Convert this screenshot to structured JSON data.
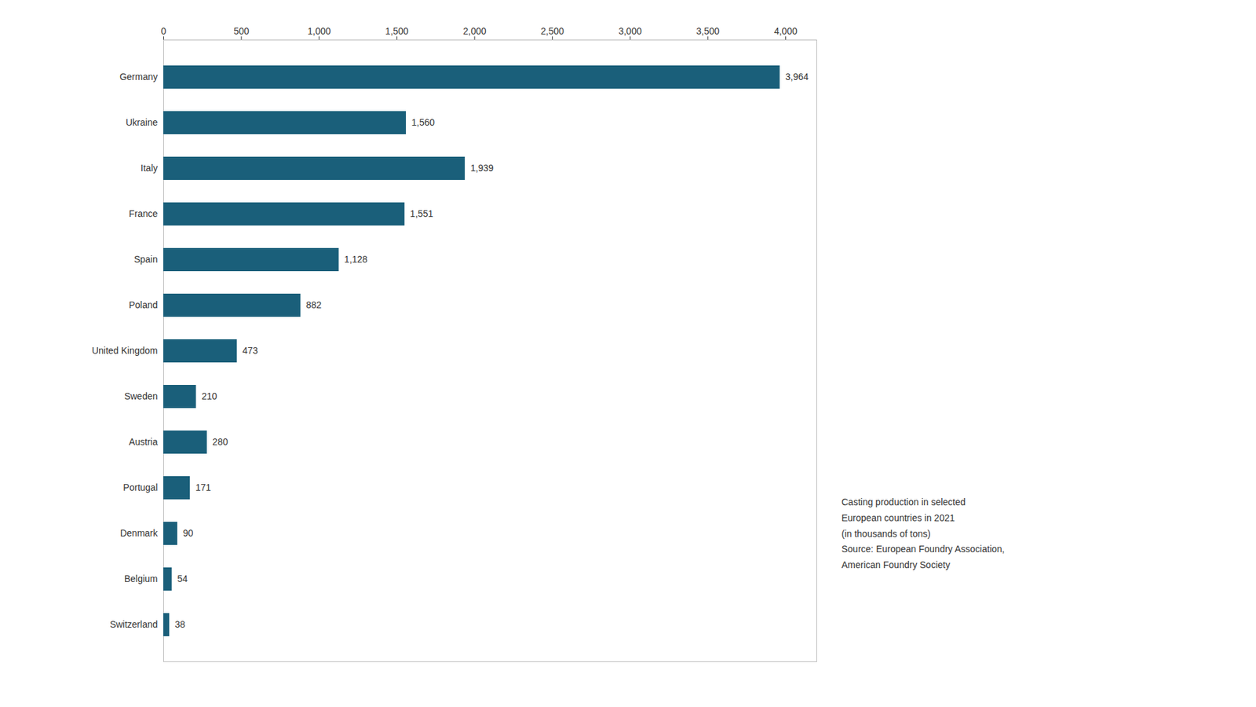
{
  "chart_data": {
    "type": "bar",
    "orientation": "horizontal",
    "categories": [
      "Switzerland",
      "Belgium",
      "Denmark",
      "Portugal",
      "Austria",
      "Sweden",
      "United Kingdom",
      "Poland",
      "Spain",
      "France",
      "Italy",
      "Ukraine",
      "Germany"
    ],
    "values": [
      38,
      54,
      90,
      171,
      280,
      210,
      473,
      882,
      1128,
      1551,
      1939,
      1560,
      3964
    ],
    "value_labels": [
      "38",
      "54",
      "90",
      "171",
      "280",
      "210",
      "473",
      "882",
      "1,128",
      "1,551",
      "1,939",
      "1,560",
      "3,964"
    ],
    "data_labels": true,
    "color": "#1a5f7a",
    "xlim": [
      0,
      4200
    ],
    "xticks": [
      0,
      500,
      {
        "value": 1000,
        "label": "1,000"
      },
      {
        "value": 1500,
        "label": "1,500"
      },
      {
        "value": 2000,
        "label": "2,000"
      },
      {
        "value": 2500,
        "label": "2,500"
      },
      {
        "value": 3000,
        "label": "3,000"
      },
      {
        "value": 3500,
        "label": "3,500"
      },
      {
        "value": 4000,
        "label": "4,000"
      }
    ],
    "grid": false,
    "annotation": "Casting production in selected\nEuropean countries in 2021\n(in thousands of tons)\nSource: European Foundry Association,\nAmerican Foundry Society"
  }
}
